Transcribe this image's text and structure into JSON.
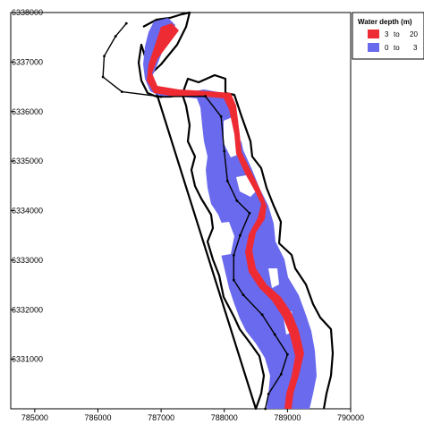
{
  "colors": {
    "deep": "#ee2a33",
    "shallow": "#6a6aee",
    "outline": "#000000",
    "background": "#ffffff"
  },
  "legend": {
    "title": "Water depth (m)",
    "entries": [
      {
        "from": "3",
        "to_word": "to",
        "to": "20",
        "color": "#ee2a33"
      },
      {
        "from": "0",
        "to_word": "to",
        "to": "3",
        "color": "#6a6aee"
      }
    ]
  },
  "axes": {
    "x_ticks": [
      "785000",
      "786000",
      "787000",
      "788000",
      "789000",
      "790000"
    ],
    "y_ticks": [
      "6338000",
      "6337000",
      "6336000",
      "6335000",
      "6334000",
      "6333000",
      "6332000",
      "6331000"
    ],
    "xlim": [
      784620,
      790000
    ],
    "ylim": [
      6330000,
      6338000
    ]
  },
  "channel_line": [
    [
      786450,
      6337780
    ],
    [
      786280,
      6337520
    ],
    [
      786100,
      6337120
    ],
    [
      786080,
      6336700
    ],
    [
      786380,
      6336400
    ],
    [
      787000,
      6336300
    ],
    [
      787700,
      6336310
    ],
    [
      787950,
      6335900
    ],
    [
      788000,
      6335200
    ],
    [
      788050,
      6334600
    ],
    [
      788200,
      6334200
    ],
    [
      788400,
      6333950
    ],
    [
      788250,
      6333500
    ],
    [
      788150,
      6333100
    ],
    [
      788150,
      6332600
    ],
    [
      788300,
      6332300
    ],
    [
      788600,
      6331900
    ],
    [
      788800,
      6331500
    ],
    [
      789000,
      6331100
    ],
    [
      788900,
      6330700
    ],
    [
      788700,
      6330300
    ],
    [
      788650,
      6330000
    ]
  ]
}
